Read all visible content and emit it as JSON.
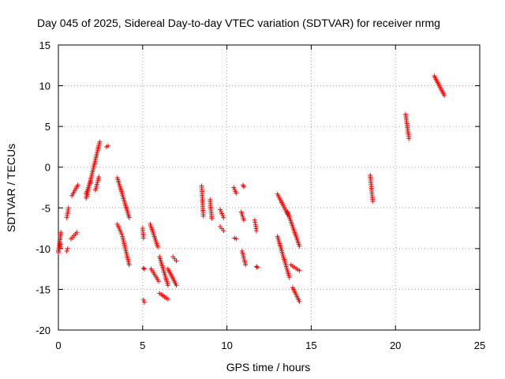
{
  "chart_data": {
    "type": "scatter",
    "title": "Day 045 of 2025, Sidereal Day-to-day VTEC variation (SDTVAR) for receiver nrmg",
    "xlabel": "GPS time / hours",
    "ylabel": "SDTVAR / TECUs",
    "xlim": [
      0,
      25
    ],
    "ylim": [
      -20,
      15
    ],
    "xticks": [
      0,
      5,
      10,
      15,
      20,
      25
    ],
    "yticks": [
      -20,
      -15,
      -10,
      -5,
      0,
      5,
      10,
      15
    ],
    "grid": true,
    "marker": "+",
    "marker_color": "#ff0000",
    "series": [
      {
        "name": "SDTVAR",
        "segments": [
          {
            "x": [
              0.0,
              0.15
            ],
            "y": [
              -10.5,
              -8.0
            ]
          },
          {
            "x": [
              0.0,
              0.15
            ],
            "y": [
              -10.3,
              -9.5
            ]
          },
          {
            "x": [
              0.5,
              0.55
            ],
            "y": [
              -10.3,
              -10.0
            ]
          },
          {
            "x": [
              0.5,
              0.6
            ],
            "y": [
              -6.2,
              -5.0
            ]
          },
          {
            "x": [
              0.75,
              1.1
            ],
            "y": [
              -8.8,
              -8.0
            ]
          },
          {
            "x": [
              0.8,
              1.15
            ],
            "y": [
              -3.5,
              -2.2
            ]
          },
          {
            "x": [
              1.65,
              2.45
            ],
            "y": [
              -3.8,
              3.1
            ]
          },
          {
            "x": [
              1.65,
              1.9
            ],
            "y": [
              -3.2,
              -1.8
            ]
          },
          {
            "x": [
              2.2,
              2.4
            ],
            "y": [
              -2.8,
              -1.2
            ]
          },
          {
            "x": [
              2.85,
              2.95
            ],
            "y": [
              2.5,
              2.6
            ]
          },
          {
            "x": [
              3.5,
              4.2
            ],
            "y": [
              -1.3,
              -6.2
            ]
          },
          {
            "x": [
              3.5,
              3.75
            ],
            "y": [
              -7.0,
              -8.2
            ]
          },
          {
            "x": [
              3.8,
              4.2
            ],
            "y": [
              -8.5,
              -12.0
            ]
          },
          {
            "x": [
              5.0,
              5.05
            ],
            "y": [
              -7.5,
              -8.7
            ]
          },
          {
            "x": [
              5.05,
              5.1
            ],
            "y": [
              -12.4,
              -12.5
            ]
          },
          {
            "x": [
              5.05,
              5.1
            ],
            "y": [
              -16.3,
              -16.6
            ]
          },
          {
            "x": [
              5.45,
              5.9
            ],
            "y": [
              -7.0,
              -9.8
            ]
          },
          {
            "x": [
              5.5,
              5.95
            ],
            "y": [
              -12.5,
              -14.0
            ]
          },
          {
            "x": [
              6.0,
              6.5
            ],
            "y": [
              -11.0,
              -14.5
            ]
          },
          {
            "x": [
              6.0,
              6.5
            ],
            "y": [
              -15.5,
              -16.2
            ]
          },
          {
            "x": [
              6.5,
              7.0
            ],
            "y": [
              -12.5,
              -14.5
            ]
          },
          {
            "x": [
              6.8,
              7.0
            ],
            "y": [
              -11.0,
              -11.5
            ]
          },
          {
            "x": [
              8.5,
              8.6
            ],
            "y": [
              -2.3,
              -6.0
            ]
          },
          {
            "x": [
              9.0,
              9.1
            ],
            "y": [
              -4.0,
              -6.3
            ]
          },
          {
            "x": [
              9.6,
              9.8
            ],
            "y": [
              -5.2,
              -6.2
            ]
          },
          {
            "x": [
              9.6,
              9.8
            ],
            "y": [
              -7.3,
              -7.8
            ]
          },
          {
            "x": [
              10.4,
              10.55
            ],
            "y": [
              -2.5,
              -3.2
            ]
          },
          {
            "x": [
              10.45,
              10.55
            ],
            "y": [
              -8.7,
              -8.8
            ]
          },
          {
            "x": [
              10.85,
              11.0
            ],
            "y": [
              -5.5,
              -6.5
            ]
          },
          {
            "x": [
              10.9,
              11.1
            ],
            "y": [
              -10.3,
              -12.0
            ]
          },
          {
            "x": [
              10.95,
              11.0
            ],
            "y": [
              -2.2,
              -2.4
            ]
          },
          {
            "x": [
              11.65,
              11.75
            ],
            "y": [
              -6.5,
              -7.8
            ]
          },
          {
            "x": [
              11.75,
              11.8
            ],
            "y": [
              -12.2,
              -12.3
            ]
          },
          {
            "x": [
              13.0,
              13.6
            ],
            "y": [
              -3.3,
              -5.8
            ]
          },
          {
            "x": [
              13.0,
              13.7
            ],
            "y": [
              -8.5,
              -13.5
            ]
          },
          {
            "x": [
              13.6,
              14.3
            ],
            "y": [
              -5.5,
              -9.7
            ]
          },
          {
            "x": [
              13.8,
              14.3
            ],
            "y": [
              -12.0,
              -12.7
            ]
          },
          {
            "x": [
              13.9,
              14.3
            ],
            "y": [
              -14.8,
              -16.5
            ]
          },
          {
            "x": [
              18.5,
              18.65
            ],
            "y": [
              -1.0,
              -4.2
            ]
          },
          {
            "x": [
              20.6,
              20.8
            ],
            "y": [
              6.5,
              3.5
            ]
          },
          {
            "x": [
              22.3,
              22.9
            ],
            "y": [
              11.2,
              8.8
            ]
          }
        ]
      }
    ]
  }
}
